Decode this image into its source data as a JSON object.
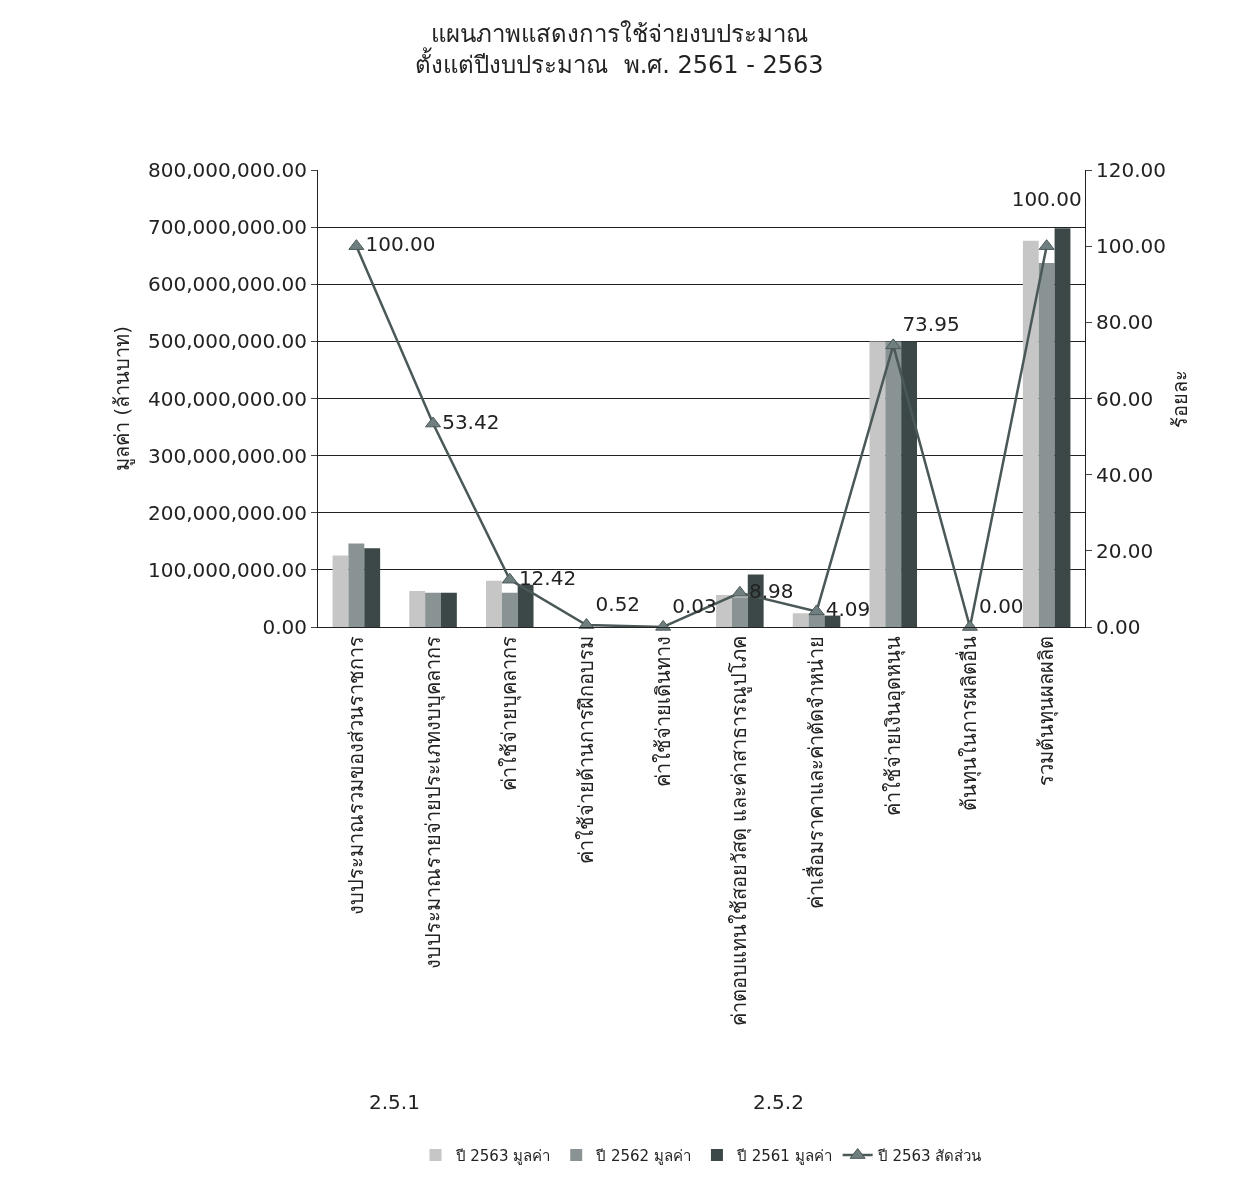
{
  "chart_data": {
    "type": "bar",
    "title": "แผนภาพแสดงการใช้จ่ายงบประมาณ",
    "subtitle": "ตั้งแต่ปีงบประมาณ  พ.ศ. 2561 - 2563",
    "ylabel": "มูลค่า (ล้านบาท)",
    "y2label": "ร้อยละ",
    "categories": [
      "งบประมาณรวมของส่วนราชการ",
      "งบประมาณรายจ่ายประเภทงบบุคลากร",
      "ค่าใช้จ่ายบุคลากร",
      "ค่าใช้จ่ายด้านการฝึกอบรม",
      "ค่าใช้จ่ายเดินทาง",
      "ค่าตอบแทนใช้สอยวัสดุ และค่าสาธารณูปโภค",
      "ค่าเสื่อมราคาและค่าตัดจำหน่าย",
      "ค่าใช้จ่ายเงินอุดหนุน",
      "ต้นทุนในการผลิตอื่น",
      "รวมต้นทุนผลผลิต"
    ],
    "series": [
      {
        "name": "ปี 2563 มูลค่า",
        "color": "#c6c6c6",
        "values": [
          125000000,
          63000000,
          81000000,
          0,
          0,
          56000000,
          24000000,
          500000000,
          0,
          676000000
        ]
      },
      {
        "name": "ปี 2562 มูลค่า",
        "color": "#8a9393",
        "values": [
          146000000,
          60000000,
          60000000,
          0,
          0,
          52000000,
          24000000,
          500000000,
          0,
          637000000
        ]
      },
      {
        "name": "ปี 2561 มูลค่า",
        "color": "#3c4848",
        "values": [
          138000000,
          60000000,
          74000000,
          0,
          0,
          92000000,
          20000000,
          500000000,
          0,
          698000000
        ]
      },
      {
        "name": "ปี 2563 สัดส่วน",
        "type": "line",
        "axis": "y2",
        "color": "#4b5858",
        "marker": "triangle",
        "values": [
          100,
          53.42,
          12.42,
          0.52,
          0.03,
          8.98,
          4.09,
          73.95,
          0,
          100
        ],
        "value_labels": [
          "100.00",
          "53.42",
          "12.42",
          "0.52",
          "0.03",
          "8.98",
          "4.09",
          "73.95",
          "0.00",
          "100.00"
        ]
      }
    ],
    "ylim": [
      0,
      800000000
    ],
    "yticks": [
      {
        "value": 0,
        "label": "0.00"
      },
      {
        "value": 100000000,
        "label": "100,000,000.00"
      },
      {
        "value": 200000000,
        "label": "200,000,000.00"
      },
      {
        "value": 300000000,
        "label": "300,000,000.00"
      },
      {
        "value": 400000000,
        "label": "400,000,000.00"
      },
      {
        "value": 500000000,
        "label": "500,000,000.00"
      },
      {
        "value": 600000000,
        "label": "600,000,000.00"
      },
      {
        "value": 700000000,
        "label": "700,000,000.00"
      },
      {
        "value": 800000000,
        "label": "800,000,000.00"
      }
    ],
    "y2lim": [
      0,
      120
    ],
    "y2ticks": [
      {
        "value": 0,
        "label": "0.00"
      },
      {
        "value": 20,
        "label": "20.00"
      },
      {
        "value": 40,
        "label": "40.00"
      },
      {
        "value": 60,
        "label": "60.00"
      },
      {
        "value": 80,
        "label": "80.00"
      },
      {
        "value": 100,
        "label": "100.00"
      },
      {
        "value": 120,
        "label": "120.00"
      }
    ],
    "annotations": [
      "2.5.1",
      "2.5.2"
    ],
    "grid": "y",
    "legend": "bottom"
  }
}
